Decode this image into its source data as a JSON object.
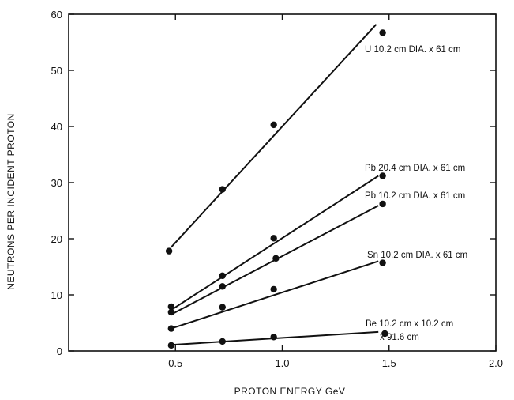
{
  "chart_data": {
    "type": "scatter",
    "title": "",
    "xlabel": "PROTON ENERGY GeV",
    "ylabel": "NEUTRONS PER INCIDENT PROTON",
    "xlim": [
      0,
      2.0
    ],
    "ylim": [
      0,
      60
    ],
    "xticks": [
      0.5,
      1.0,
      1.5,
      2.0
    ],
    "xtick_labels": [
      "0.5",
      "1.0",
      "1.5",
      "2.0"
    ],
    "yticks": [
      0,
      10,
      20,
      30,
      40,
      50,
      60
    ],
    "ytick_labels": [
      "0",
      "10",
      "20",
      "30",
      "40",
      "50",
      "60"
    ],
    "grid": false,
    "legend": "none",
    "series": [
      {
        "name": "U 10.2 cm DIA. x 61 cm",
        "x": [
          0.47,
          0.72,
          0.96,
          1.47
        ],
        "y": [
          17.8,
          28.8,
          40.3,
          56.7
        ],
        "fit": [
          [
            0.48,
            18.5
          ],
          [
            1.44,
            58.2
          ]
        ]
      },
      {
        "name": "Pb 20.4 cm DIA. x 61 cm",
        "x": [
          0.48,
          0.72,
          0.96,
          1.47
        ],
        "y": [
          7.9,
          13.4,
          20.1,
          31.2
        ],
        "fit": [
          [
            0.48,
            7.3
          ],
          [
            1.45,
            31.2
          ]
        ]
      },
      {
        "name": "Pb 10.2 cm DIA. x 61 cm",
        "x": [
          0.48,
          0.72,
          0.97,
          1.47
        ],
        "y": [
          6.9,
          11.5,
          16.5,
          26.2
        ],
        "fit": [
          [
            0.48,
            6.5
          ],
          [
            1.45,
            25.9
          ]
        ]
      },
      {
        "name": "Sn 10.2 cm DIA. x 61 cm",
        "x": [
          0.48,
          0.72,
          0.96,
          1.47
        ],
        "y": [
          4.0,
          7.8,
          11.0,
          15.7
        ],
        "fit": [
          [
            0.48,
            4.0
          ],
          [
            1.45,
            16.0
          ]
        ]
      },
      {
        "name": "Be 10.2 cm x 10.2 cm",
        "name_line2": "x 91.6 cm",
        "x": [
          0.48,
          0.72,
          0.96,
          1.48
        ],
        "y": [
          1.0,
          1.7,
          2.5,
          3.1
        ],
        "fit": [
          [
            0.48,
            1.1
          ],
          [
            1.45,
            3.4
          ]
        ]
      }
    ]
  }
}
